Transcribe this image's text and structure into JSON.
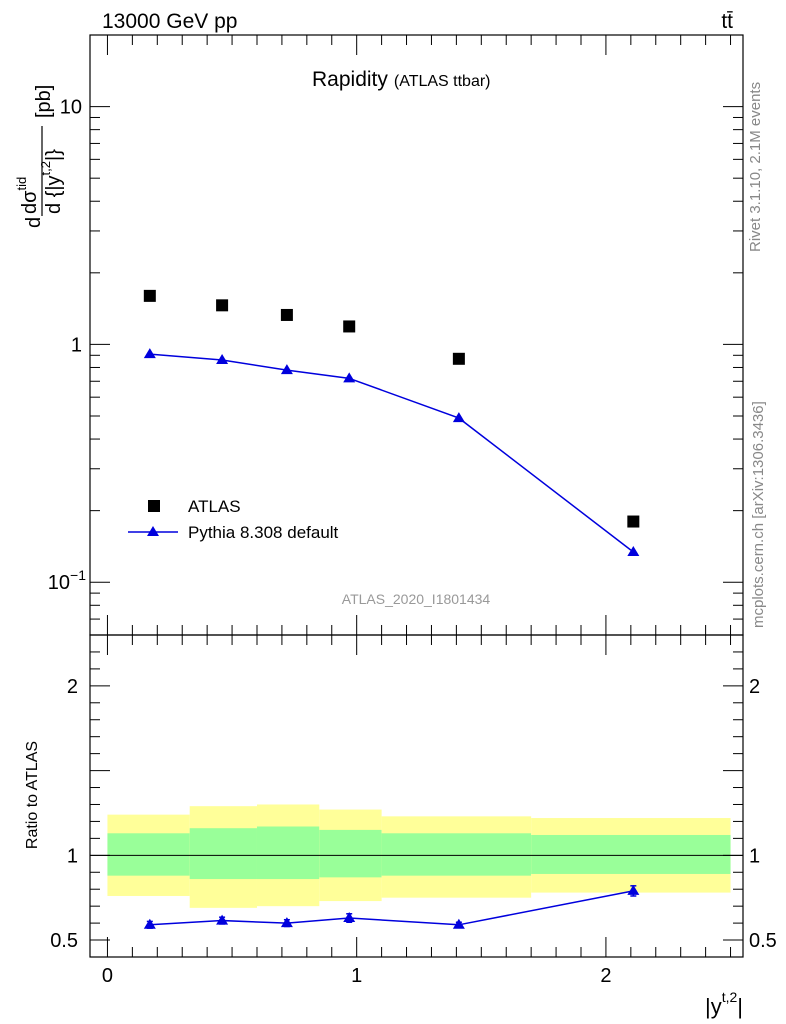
{
  "header": {
    "left": "13000 GeV pp",
    "right": "tt̄"
  },
  "side_text": {
    "rivet": "Rivet 3.1.10,  2.1M events",
    "mcplots": "mcplots.cern.ch [arXiv:1306.3436]"
  },
  "chart_data": [
    {
      "type": "scatter",
      "title": "Rapidity",
      "subtitle": "(ATLAS ttbar)",
      "watermark": "ATLAS_2020_I1801434",
      "ylabel": "d dσ^tid / d {|y^t,2|} [pb]",
      "ylabel_parts": {
        "d": "d",
        "num": "dσ",
        "num_sup": "tid",
        "den": "d {|y",
        "den_sup": "t,2",
        "den_end": "|}",
        "unit": "[pb]"
      },
      "yscale": "log",
      "ylim": [
        0.06,
        20
      ],
      "xlim": [
        -0.07,
        2.55
      ],
      "yticks": [
        {
          "value": 10,
          "label": "10"
        },
        {
          "value": 1,
          "label": "1"
        },
        {
          "value": 0.1,
          "label": "10",
          "sup": "−1"
        }
      ],
      "legend_position": "bottom-left",
      "series": [
        {
          "name": "ATLAS",
          "marker": "square",
          "color": "#000000",
          "x": [
            0.17,
            0.46,
            0.72,
            0.97,
            1.41,
            2.11
          ],
          "y": [
            1.6,
            1.46,
            1.33,
            1.19,
            0.87,
            0.18
          ]
        },
        {
          "name": "Pythia 8.308 default",
          "marker": "triangle",
          "color": "#0000dd",
          "x": [
            0.17,
            0.46,
            0.72,
            0.97,
            1.41,
            2.11
          ],
          "y": [
            0.91,
            0.86,
            0.78,
            0.72,
            0.49,
            0.134
          ]
        }
      ]
    },
    {
      "type": "line",
      "ylabel": "Ratio to ATLAS",
      "xlabel": "|y",
      "xlabel_sup": "t,2",
      "xlabel_end": "|",
      "xlim": [
        -0.07,
        2.55
      ],
      "ylim": [
        0.4,
        2.3
      ],
      "xticks": [
        0,
        1,
        2
      ],
      "yticks": [
        0.5,
        1,
        2
      ],
      "bands": {
        "bins": [
          [
            0,
            0.33
          ],
          [
            0.33,
            0.6
          ],
          [
            0.6,
            0.85
          ],
          [
            0.85,
            1.1
          ],
          [
            1.1,
            1.7
          ],
          [
            1.7,
            2.5
          ]
        ],
        "yellow": [
          [
            0.76,
            1.24
          ],
          [
            0.69,
            1.29
          ],
          [
            0.7,
            1.3
          ],
          [
            0.73,
            1.27
          ],
          [
            0.75,
            1.23
          ],
          [
            0.78,
            1.22
          ]
        ],
        "green": [
          [
            0.88,
            1.13
          ],
          [
            0.86,
            1.16
          ],
          [
            0.86,
            1.17
          ],
          [
            0.87,
            1.15
          ],
          [
            0.88,
            1.13
          ],
          [
            0.89,
            1.12
          ]
        ],
        "yellow_color": "#ffff99",
        "green_color": "#99ff99"
      },
      "series": [
        {
          "name": "Pythia 8.308 default",
          "color": "#0000dd",
          "x": [
            0.17,
            0.46,
            0.72,
            0.97,
            1.41,
            2.11
          ],
          "y": [
            0.59,
            0.615,
            0.6,
            0.63,
            0.59,
            0.79
          ],
          "err": [
            0.02,
            0.02,
            0.02,
            0.025,
            0.015,
            0.03
          ]
        }
      ]
    }
  ]
}
